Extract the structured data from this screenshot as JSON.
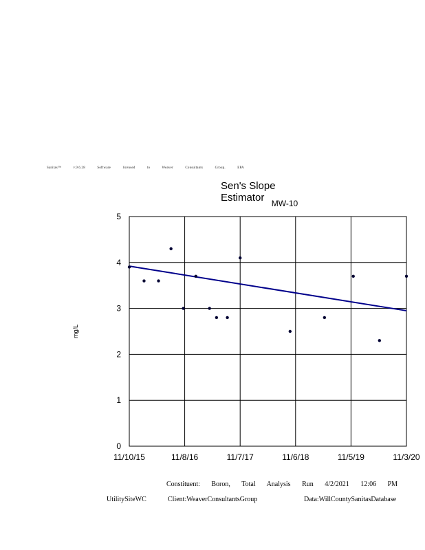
{
  "banner": "Sanitas™ v.9.6.28 Software licensed to Weaver Consultants Group. EPA",
  "chart_data": {
    "type": "scatter",
    "title": "Sen's Slope Estimator",
    "subtitle": "MW-10",
    "ylabel": "mg/L",
    "xlabel": "",
    "ylim": [
      0,
      5
    ],
    "yticks": [
      "0",
      "1",
      "2",
      "3",
      "4",
      "5"
    ],
    "xlim": [
      "2015-11-10",
      "2020-11-03"
    ],
    "xticks": [
      {
        "label": "11/10/15",
        "date": "2015-11-10"
      },
      {
        "label": "11/8/16",
        "date": "2016-11-08"
      },
      {
        "label": "11/7/17",
        "date": "2017-11-07"
      },
      {
        "label": "11/6/18",
        "date": "2018-11-06"
      },
      {
        "label": "11/5/19",
        "date": "2019-11-05"
      },
      {
        "label": "11/3/20",
        "date": "2020-11-03"
      }
    ],
    "grid": true,
    "series": [
      {
        "values": [
          {
            "x": "2015-11-10",
            "y": 3.9
          },
          {
            "x": "2016-02-15",
            "y": 3.6
          },
          {
            "x": "2016-05-20",
            "y": 3.6
          },
          {
            "x": "2016-08-10",
            "y": 4.3
          },
          {
            "x": "2016-10-30",
            "y": 3.0
          },
          {
            "x": "2017-01-20",
            "y": 3.7
          },
          {
            "x": "2017-04-20",
            "y": 3.0
          },
          {
            "x": "2017-06-05",
            "y": 2.8
          },
          {
            "x": "2017-08-15",
            "y": 2.8
          },
          {
            "x": "2017-11-07",
            "y": 4.1
          },
          {
            "x": "2018-10-01",
            "y": 2.5
          },
          {
            "x": "2019-05-15",
            "y": 2.8
          },
          {
            "x": "2019-11-20",
            "y": 3.7
          },
          {
            "x": "2020-05-10",
            "y": 2.3
          },
          {
            "x": "2020-11-03",
            "y": 3.7
          }
        ],
        "color": "#000033"
      }
    ],
    "trend_line": {
      "color": "#00008B",
      "start": {
        "x": "2015-11-10",
        "y": 3.92
      },
      "end": {
        "x": "2020-11-03",
        "y": 2.95
      }
    }
  },
  "footer": {
    "line1": "Constituent: Boron, Total Analysis Run 4/2/2021 12:06 PM",
    "site": "UtilitySiteWC",
    "client": "Client:WeaverConsultantsGroup",
    "data": "Data:WillCountySanitasDatabase"
  }
}
